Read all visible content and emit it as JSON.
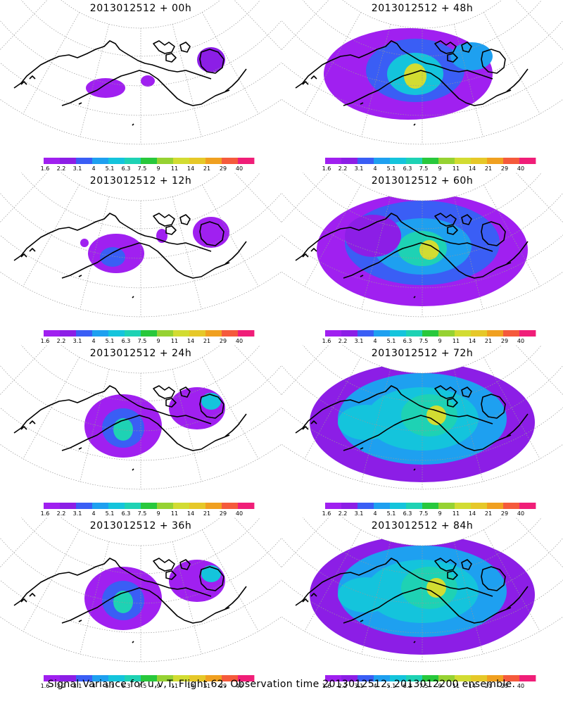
{
  "figure": {
    "caption": "Signal Variance for u,v,T. Flight 62. Observation time 2013012512. 2013012200 ensemble."
  },
  "colorbar": {
    "labels": [
      "1.6",
      "2.2",
      "3.1",
      "4",
      "5.1",
      "6.3",
      "7.5",
      "9",
      "11",
      "14",
      "21",
      "29",
      "40"
    ],
    "colors": [
      "#a020f0",
      "#8c1ee6",
      "#3a5ef5",
      "#1ea0f0",
      "#14c4dc",
      "#1ed2b4",
      "#28c83c",
      "#96d232",
      "#d2dc32",
      "#e6c828",
      "#f0a020",
      "#f55a3c",
      "#f01e78"
    ]
  },
  "panels": [
    {
      "id": "p00",
      "title": "2013012512 + 00h",
      "intensity": 0
    },
    {
      "id": "p48",
      "title": "2013012512 + 48h",
      "intensity": 3
    },
    {
      "id": "p12",
      "title": "2013012512 + 12h",
      "intensity": 1
    },
    {
      "id": "p60",
      "title": "2013012512 + 60h",
      "intensity": 4
    },
    {
      "id": "p24",
      "title": "2013012512 + 24h",
      "intensity": 2
    },
    {
      "id": "p72",
      "title": "2013012512 + 72h",
      "intensity": 5
    },
    {
      "id": "p36",
      "title": "2013012512 + 36h",
      "intensity": 2
    },
    {
      "id": "p84",
      "title": "2013012512 + 84h",
      "intensity": 5
    }
  ]
}
